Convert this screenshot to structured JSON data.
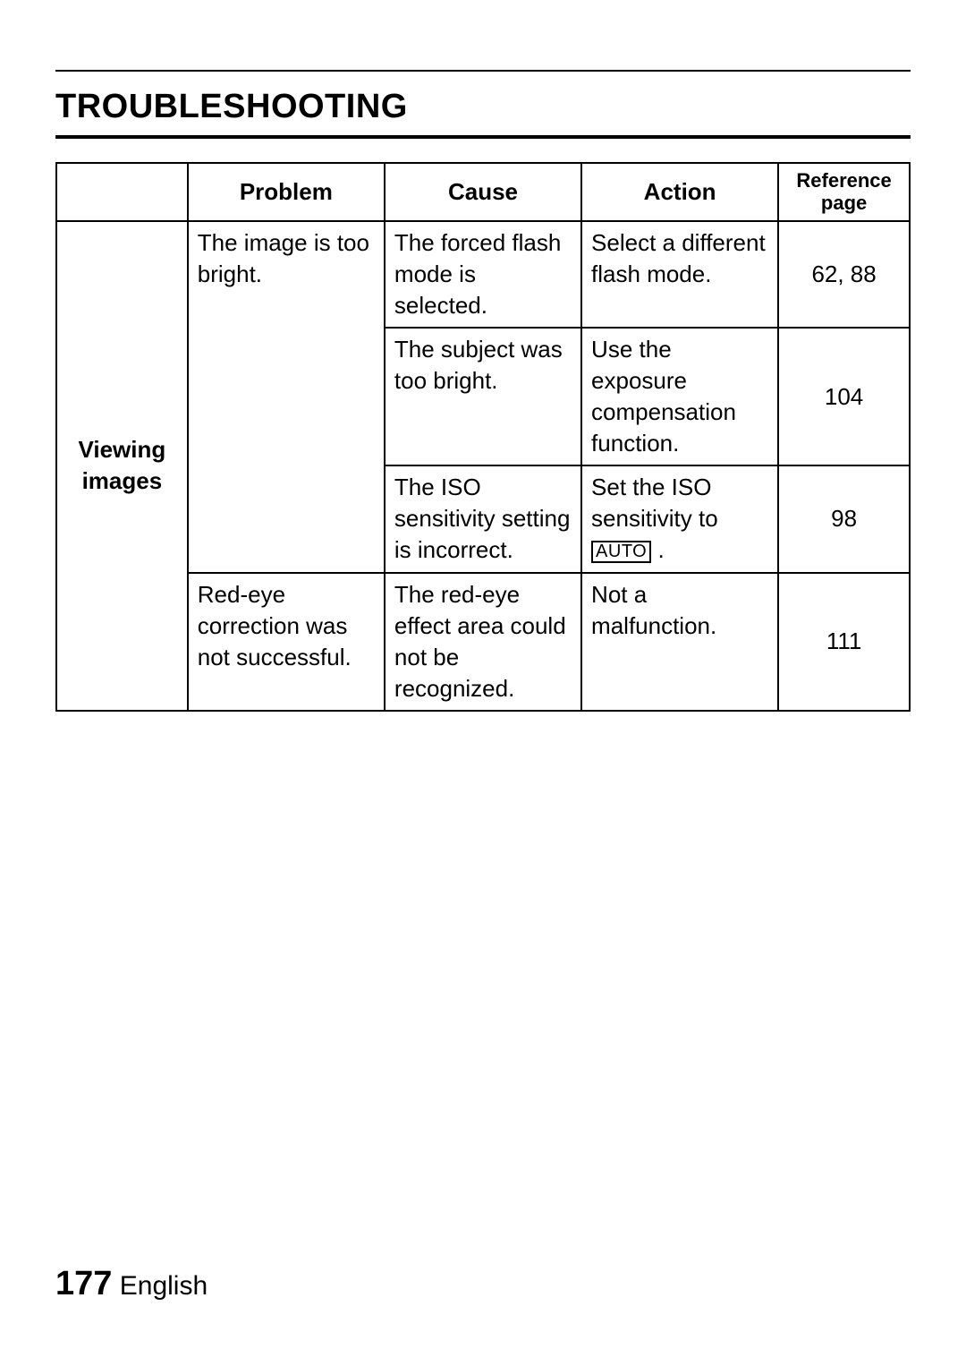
{
  "page": {
    "title": "TROUBLESHOOTING",
    "number": "177",
    "language": "English"
  },
  "table": {
    "headers": {
      "category": "",
      "problem": "Problem",
      "cause": "Cause",
      "action": "Action",
      "reference": "Reference page"
    },
    "category": "Viewing images",
    "rows": [
      {
        "problem": "The image is too bright.",
        "cause": "The forced flash mode is selected.",
        "action": "Select a different flash mode.",
        "reference": "62, 88"
      },
      {
        "cause": "The subject was too bright.",
        "action": "Use the exposure compensation function.",
        "reference": "104"
      },
      {
        "cause": "The ISO sensitivity setting is incorrect.",
        "action_pre": "Set the ISO sensitivity to ",
        "action_box": "AUTO",
        "action_post": " .",
        "reference": "98"
      },
      {
        "problem": "Red-eye correction was not successful.",
        "cause": "The red-eye effect area could not be recognized.",
        "action": "Not a malfunction.",
        "reference": "111"
      }
    ]
  }
}
